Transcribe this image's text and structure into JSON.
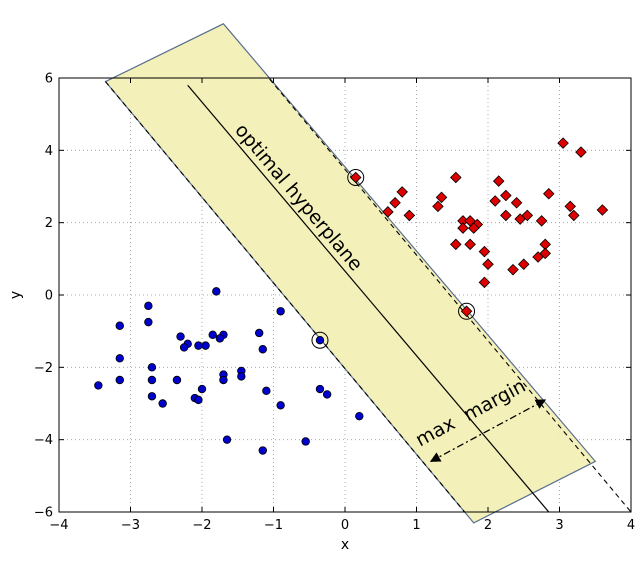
{
  "chart_data": {
    "type": "scatter",
    "title": "",
    "xlabel": "x",
    "ylabel": "y",
    "xlim": [
      -4,
      4
    ],
    "ylim": [
      -6,
      6
    ],
    "xticks": [
      "−4",
      "−3",
      "−2",
      "−1",
      "0",
      "1",
      "2",
      "3",
      "4"
    ],
    "yticks": [
      "−6",
      "−4",
      "−2",
      "0",
      "2",
      "4",
      "6"
    ],
    "grid": true,
    "annotations": {
      "hyperplane_label": "optimal hyperplane",
      "margin_word_1": "max",
      "margin_word_2": "margin"
    },
    "hyperplane": {
      "p1": [
        -2.2,
        5.8
      ],
      "p2": [
        2.85,
        -6.0
      ]
    },
    "margin_band": {
      "corners": [
        [
          -3.35,
          5.9
        ],
        [
          -1.7,
          7.5
        ],
        [
          3.5,
          -4.6
        ],
        [
          1.8,
          -6.3
        ]
      ],
      "fill": "#f2f0b3",
      "edge": "#5a6f8f"
    },
    "margin_lines": [
      {
        "p1": [
          -3.35,
          5.9
        ],
        "p2": [
          1.8,
          -6.3
        ]
      },
      {
        "p1": [
          -1.7,
          7.5
        ],
        "p2": [
          4.0,
          -6.0
        ]
      }
    ],
    "margin_arrow": {
      "from": [
        1.2,
        -4.6
      ],
      "to": [
        2.8,
        -2.9
      ]
    },
    "series": [
      {
        "marker": "diamond",
        "color": "#dd0000",
        "points": [
          [
            3.05,
            4.2
          ],
          [
            3.3,
            3.95
          ],
          [
            1.55,
            3.25
          ],
          [
            2.15,
            3.15
          ],
          [
            0.8,
            2.85
          ],
          [
            2.1,
            2.6
          ],
          [
            2.25,
            2.75
          ],
          [
            2.4,
            2.55
          ],
          [
            2.85,
            2.8
          ],
          [
            1.35,
            2.7
          ],
          [
            0.7,
            2.55
          ],
          [
            0.6,
            2.3
          ],
          [
            0.9,
            2.2
          ],
          [
            1.3,
            2.45
          ],
          [
            3.6,
            2.35
          ],
          [
            3.15,
            2.45
          ],
          [
            3.2,
            2.2
          ],
          [
            2.55,
            2.2
          ],
          [
            2.45,
            2.1
          ],
          [
            2.25,
            2.2
          ],
          [
            1.65,
            2.05
          ],
          [
            1.75,
            2.05
          ],
          [
            1.85,
            1.95
          ],
          [
            1.65,
            1.85
          ],
          [
            1.8,
            1.85
          ],
          [
            2.75,
            2.05
          ],
          [
            1.55,
            1.4
          ],
          [
            1.75,
            1.4
          ],
          [
            1.95,
            1.2
          ],
          [
            2.8,
            1.4
          ],
          [
            2.8,
            1.15
          ],
          [
            2.7,
            1.05
          ],
          [
            2.0,
            0.85
          ],
          [
            2.5,
            0.85
          ],
          [
            2.35,
            0.7
          ],
          [
            1.95,
            0.35
          ],
          [
            0.15,
            3.25
          ],
          [
            1.7,
            -0.45
          ]
        ]
      },
      {
        "marker": "circle",
        "color": "#0000cc",
        "points": [
          [
            -1.8,
            0.1
          ],
          [
            -2.75,
            -0.3
          ],
          [
            -0.9,
            -0.45
          ],
          [
            -3.15,
            -0.85
          ],
          [
            -2.75,
            -0.75
          ],
          [
            -1.2,
            -1.05
          ],
          [
            -2.3,
            -1.15
          ],
          [
            -1.85,
            -1.1
          ],
          [
            -1.7,
            -1.1
          ],
          [
            -1.75,
            -1.2
          ],
          [
            -2.2,
            -1.35
          ],
          [
            -2.25,
            -1.45
          ],
          [
            -2.05,
            -1.4
          ],
          [
            -1.95,
            -1.4
          ],
          [
            -1.15,
            -1.5
          ],
          [
            -3.15,
            -1.75
          ],
          [
            -2.7,
            -2.0
          ],
          [
            -1.45,
            -2.1
          ],
          [
            -1.7,
            -2.2
          ],
          [
            -1.45,
            -2.25
          ],
          [
            -1.7,
            -2.35
          ],
          [
            -3.15,
            -2.35
          ],
          [
            -2.7,
            -2.35
          ],
          [
            -2.35,
            -2.35
          ],
          [
            -3.45,
            -2.5
          ],
          [
            -2.0,
            -2.6
          ],
          [
            -1.1,
            -2.65
          ],
          [
            -0.35,
            -2.6
          ],
          [
            -0.25,
            -2.75
          ],
          [
            -2.1,
            -2.85
          ],
          [
            -2.05,
            -2.9
          ],
          [
            -2.7,
            -2.8
          ],
          [
            -2.55,
            -3.0
          ],
          [
            -0.9,
            -3.05
          ],
          [
            0.2,
            -3.35
          ],
          [
            -1.65,
            -4.0
          ],
          [
            -0.55,
            -4.05
          ],
          [
            -1.15,
            -4.3
          ],
          [
            -0.35,
            -1.25
          ]
        ]
      }
    ],
    "support_vectors": [
      [
        0.15,
        3.25
      ],
      [
        1.7,
        -0.45
      ],
      [
        -0.35,
        -1.25
      ]
    ]
  }
}
